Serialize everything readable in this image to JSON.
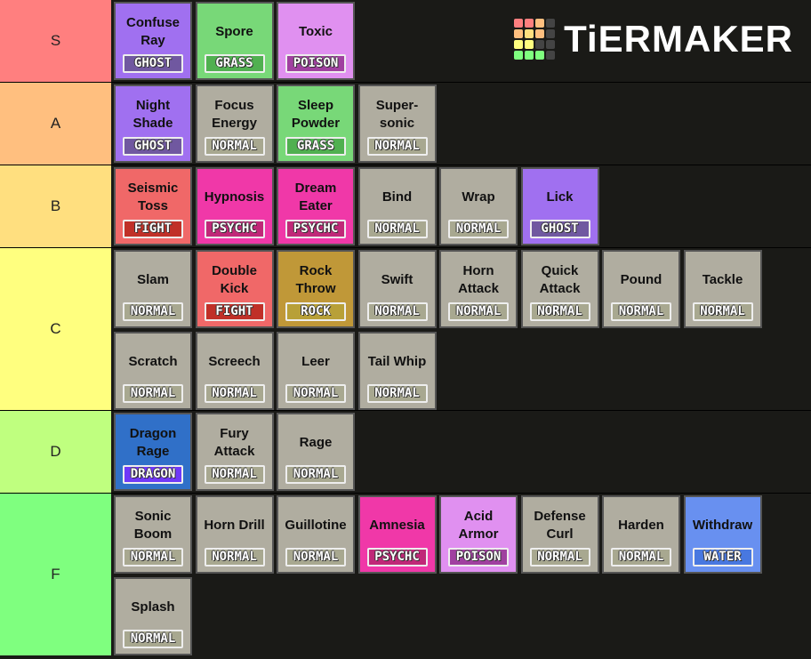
{
  "logo": "TiERMAKER",
  "tiers": [
    {
      "label": "S",
      "color": "#ff7f7f",
      "items": [
        {
          "name": "Confuse Ray",
          "type": "GHOST",
          "color": "#a070f0",
          "badge_color": "#7058a0"
        },
        {
          "name": "Spore",
          "type": "GRASS",
          "color": "#78d878",
          "badge_color": "#50b050"
        },
        {
          "name": "Toxic",
          "type": "POISON",
          "color": "#e090f0",
          "badge_color": "#a040a0"
        }
      ]
    },
    {
      "label": "A",
      "color": "#ffbf7f",
      "items": [
        {
          "name": "Night Shade",
          "type": "GHOST",
          "color": "#a070f0",
          "badge_color": "#7058a0"
        },
        {
          "name": "Focus Energy",
          "type": "NORMAL",
          "color": "#b0ada0",
          "badge_color": "#a8a890"
        },
        {
          "name": "Sleep Powder",
          "type": "GRASS",
          "color": "#78d878",
          "badge_color": "#50b050"
        },
        {
          "name": "Super-sonic",
          "type": "NORMAL",
          "color": "#b0ada0",
          "badge_color": "#a8a890"
        }
      ]
    },
    {
      "label": "B",
      "color": "#ffdf7f",
      "items": [
        {
          "name": "Seismic Toss",
          "type": "FIGHT",
          "color": "#f06868",
          "badge_color": "#c03028"
        },
        {
          "name": "Hypnosis",
          "type": "PSYCHC",
          "color": "#f038a8",
          "badge_color": "#c02878"
        },
        {
          "name": "Dream Eater",
          "type": "PSYCHC",
          "color": "#f038a8",
          "badge_color": "#c02878"
        },
        {
          "name": "Bind",
          "type": "NORMAL",
          "color": "#b0ada0",
          "badge_color": "#a8a890"
        },
        {
          "name": "Wrap",
          "type": "NORMAL",
          "color": "#b0ada0",
          "badge_color": "#a8a890"
        },
        {
          "name": "Lick",
          "type": "GHOST",
          "color": "#a070f0",
          "badge_color": "#7058a0"
        }
      ]
    },
    {
      "label": "C",
      "color": "#ffff7f",
      "items": [
        {
          "name": "Slam",
          "type": "NORMAL",
          "color": "#b0ada0",
          "badge_color": "#a8a890"
        },
        {
          "name": "Double Kick",
          "type": "FIGHT",
          "color": "#f06868",
          "badge_color": "#c03028"
        },
        {
          "name": "Rock Throw",
          "type": "ROCK",
          "color": "#c09838",
          "badge_color": "#b8a038"
        },
        {
          "name": "Swift",
          "type": "NORMAL",
          "color": "#b0ada0",
          "badge_color": "#a8a890"
        },
        {
          "name": "Horn Attack",
          "type": "NORMAL",
          "color": "#b0ada0",
          "badge_color": "#a8a890"
        },
        {
          "name": "Quick Attack",
          "type": "NORMAL",
          "color": "#b0ada0",
          "badge_color": "#a8a890"
        },
        {
          "name": "Pound",
          "type": "NORMAL",
          "color": "#b0ada0",
          "badge_color": "#a8a890"
        },
        {
          "name": "Tackle",
          "type": "NORMAL",
          "color": "#b0ada0",
          "badge_color": "#a8a890"
        },
        {
          "name": "Scratch",
          "type": "NORMAL",
          "color": "#b0ada0",
          "badge_color": "#a8a890"
        },
        {
          "name": "Screech",
          "type": "NORMAL",
          "color": "#b0ada0",
          "badge_color": "#a8a890"
        },
        {
          "name": "Leer",
          "type": "NORMAL",
          "color": "#b0ada0",
          "badge_color": "#a8a890"
        },
        {
          "name": "Tail Whip",
          "type": "NORMAL",
          "color": "#b0ada0",
          "badge_color": "#a8a890"
        }
      ]
    },
    {
      "label": "D",
      "color": "#bfff7f",
      "items": [
        {
          "name": "Dragon Rage",
          "type": "DRAGON",
          "color": "#3070c8",
          "badge_color": "#7038f8"
        },
        {
          "name": "Fury Attack",
          "type": "NORMAL",
          "color": "#b0ada0",
          "badge_color": "#a8a890"
        },
        {
          "name": "Rage",
          "type": "NORMAL",
          "color": "#b0ada0",
          "badge_color": "#a8a890"
        }
      ]
    },
    {
      "label": "F",
      "color": "#7fff7f",
      "items": [
        {
          "name": "Sonic Boom",
          "type": "NORMAL",
          "color": "#b0ada0",
          "badge_color": "#a8a890"
        },
        {
          "name": "Horn Drill",
          "type": "NORMAL",
          "color": "#b0ada0",
          "badge_color": "#a8a890"
        },
        {
          "name": "Guillotine",
          "type": "NORMAL",
          "color": "#b0ada0",
          "badge_color": "#a8a890"
        },
        {
          "name": "Amnesia",
          "type": "PSYCHC",
          "color": "#f038a8",
          "badge_color": "#c02878"
        },
        {
          "name": "Acid Armor",
          "type": "POISON",
          "color": "#e090f0",
          "badge_color": "#a040a0"
        },
        {
          "name": "Defense Curl",
          "type": "NORMAL",
          "color": "#b0ada0",
          "badge_color": "#a8a890"
        },
        {
          "name": "Harden",
          "type": "NORMAL",
          "color": "#b0ada0",
          "badge_color": "#a8a890"
        },
        {
          "name": "Withdraw",
          "type": "WATER",
          "color": "#6890f0",
          "badge_color": "#4878e0"
        },
        {
          "name": "Splash",
          "type": "NORMAL",
          "color": "#b0ada0",
          "badge_color": "#a8a890"
        }
      ]
    }
  ]
}
